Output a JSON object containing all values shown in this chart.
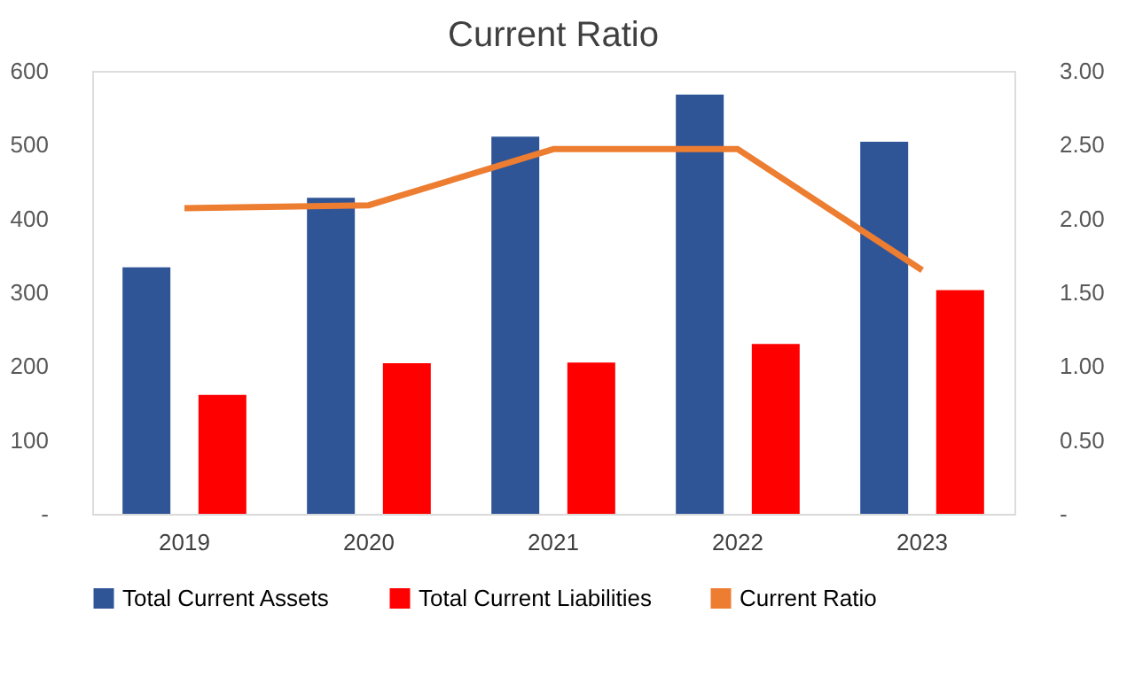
{
  "chart_data": {
    "type": "bar",
    "title": "Current Ratio",
    "categories": [
      "2019",
      "2020",
      "2021",
      "2022",
      "2023"
    ],
    "series": [
      {
        "name": "Total Current Assets",
        "color": "#2f5597",
        "values": [
          334,
          428,
          511,
          568,
          504
        ]
      },
      {
        "name": "Total Current Liabilities",
        "color": "#ff0000",
        "values": [
          161,
          204,
          205,
          230,
          303
        ]
      },
      {
        "name": "Current Ratio",
        "color": "#ed7d31",
        "type": "line",
        "axis": "y2",
        "values": [
          2.07,
          2.09,
          2.47,
          2.47,
          1.65
        ]
      }
    ],
    "ylim": [
      0,
      600
    ],
    "yticks": [
      {
        "value": 0,
        "label": "-"
      },
      100,
      200,
      300,
      400,
      500,
      600
    ],
    "y2lim": [
      0,
      3
    ],
    "y2ticks": [
      {
        "value": 0,
        "label": "-"
      },
      {
        "value": 0.5,
        "label": "0.50"
      },
      {
        "value": 1,
        "label": "1.00"
      },
      {
        "value": 1.5,
        "label": "1.50"
      },
      {
        "value": 2,
        "label": "2.00"
      },
      {
        "value": 2.5,
        "label": "2.50"
      },
      {
        "value": 3,
        "label": "3.00"
      }
    ],
    "grid": false,
    "legend": "bottom",
    "line_style": "solid",
    "marker": "none"
  }
}
